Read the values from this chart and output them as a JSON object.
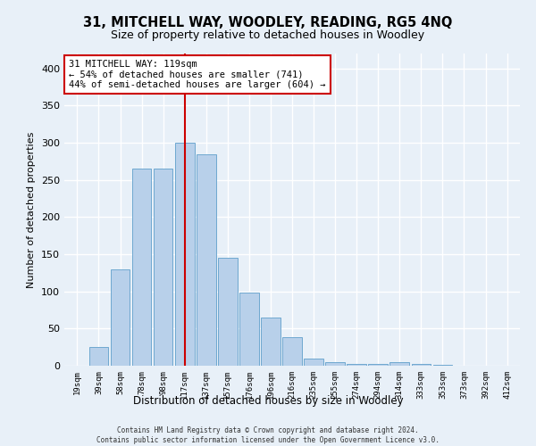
{
  "title": "31, MITCHELL WAY, WOODLEY, READING, RG5 4NQ",
  "subtitle": "Size of property relative to detached houses in Woodley",
  "xlabel": "Distribution of detached houses by size in Woodley",
  "ylabel": "Number of detached properties",
  "bar_labels": [
    "19sqm",
    "39sqm",
    "58sqm",
    "78sqm",
    "98sqm",
    "117sqm",
    "137sqm",
    "157sqm",
    "176sqm",
    "196sqm",
    "216sqm",
    "235sqm",
    "255sqm",
    "274sqm",
    "294sqm",
    "314sqm",
    "333sqm",
    "353sqm",
    "373sqm",
    "392sqm",
    "412sqm"
  ],
  "bar_values": [
    0,
    25,
    130,
    265,
    265,
    300,
    285,
    145,
    98,
    65,
    38,
    10,
    5,
    2,
    3,
    5,
    2,
    1,
    0,
    0,
    0
  ],
  "bar_color": "#b8d0ea",
  "bar_edge_color": "#6fa8d0",
  "vline_x_index": 5,
  "vline_color": "#cc0000",
  "annotation_text": "31 MITCHELL WAY: 119sqm\n← 54% of detached houses are smaller (741)\n44% of semi-detached houses are larger (604) →",
  "annotation_box_color": "#ffffff",
  "annotation_box_edge": "#cc0000",
  "ylim": [
    0,
    420
  ],
  "yticks": [
    0,
    50,
    100,
    150,
    200,
    250,
    300,
    350,
    400
  ],
  "background_color": "#e8f0f8",
  "grid_color": "#ffffff",
  "footer_line1": "Contains HM Land Registry data © Crown copyright and database right 2024.",
  "footer_line2": "Contains public sector information licensed under the Open Government Licence v3.0."
}
